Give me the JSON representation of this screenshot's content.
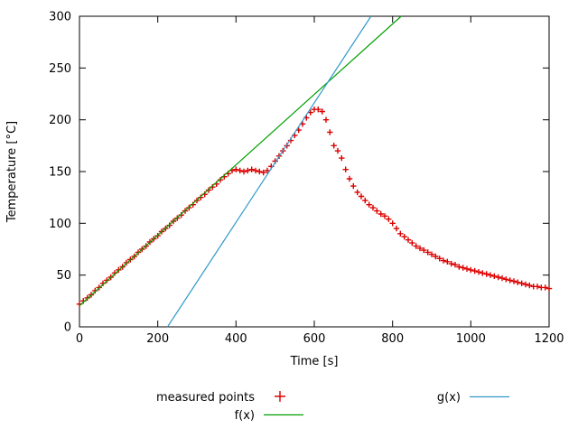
{
  "chart_data": {
    "type": "scatter",
    "title": "",
    "xlabel": "Time [s]",
    "ylabel": "Temperature [°C]",
    "xlim": [
      0,
      1200
    ],
    "ylim": [
      0,
      300
    ],
    "xticks": [
      0,
      200,
      400,
      600,
      800,
      1000,
      1200
    ],
    "yticks": [
      0,
      50,
      100,
      150,
      200,
      250,
      300
    ],
    "grid": false,
    "legend_position": "below-plot",
    "background": "#ffffff",
    "series": [
      {
        "name": "measured points",
        "type": "points",
        "marker": "+",
        "color": "#dd0000",
        "x": [
          0,
          10,
          20,
          30,
          40,
          50,
          60,
          70,
          80,
          90,
          100,
          110,
          120,
          130,
          140,
          150,
          160,
          170,
          180,
          190,
          200,
          210,
          220,
          230,
          240,
          250,
          260,
          270,
          280,
          290,
          300,
          310,
          320,
          330,
          340,
          350,
          360,
          370,
          380,
          390,
          400,
          410,
          420,
          430,
          440,
          450,
          460,
          470,
          480,
          490,
          500,
          510,
          520,
          530,
          540,
          550,
          560,
          570,
          580,
          590,
          600,
          610,
          620,
          630,
          640,
          650,
          660,
          670,
          680,
          690,
          700,
          710,
          720,
          730,
          740,
          750,
          760,
          770,
          780,
          790,
          800,
          810,
          820,
          830,
          840,
          850,
          860,
          870,
          880,
          890,
          900,
          910,
          920,
          930,
          940,
          950,
          960,
          970,
          980,
          990,
          1000,
          1010,
          1020,
          1030,
          1040,
          1050,
          1060,
          1070,
          1080,
          1090,
          1100,
          1110,
          1120,
          1130,
          1140,
          1150,
          1160,
          1170,
          1180,
          1190,
          1200
        ],
        "y": [
          22,
          25,
          28,
          31,
          35,
          38,
          42,
          45,
          48,
          52,
          55,
          58,
          62,
          65,
          68,
          72,
          75,
          78,
          82,
          85,
          88,
          92,
          95,
          98,
          102,
          105,
          108,
          112,
          115,
          118,
          122,
          125,
          128,
          132,
          135,
          138,
          142,
          145,
          148,
          151,
          152,
          151,
          150,
          151,
          152,
          151,
          150,
          149,
          151,
          155,
          160,
          165,
          170,
          175,
          180,
          185,
          190,
          196,
          202,
          207,
          210,
          210,
          208,
          200,
          188,
          175,
          170,
          163,
          152,
          143,
          136,
          130,
          126,
          122,
          118,
          115,
          112,
          109,
          107,
          104,
          100,
          95,
          90,
          87,
          84,
          81,
          78,
          76,
          74,
          72,
          70,
          68,
          66,
          64,
          63,
          61,
          60,
          58,
          57,
          56,
          55,
          54,
          53,
          52,
          51,
          50,
          49,
          48,
          47,
          46,
          45,
          44,
          43,
          42,
          41,
          40,
          39,
          39,
          38,
          38,
          37
        ]
      },
      {
        "name": "f(x)",
        "type": "line",
        "color": "#00a000",
        "x": [
          0,
          822
        ],
        "y": [
          20.5,
          300
        ]
      },
      {
        "name": "g(x)",
        "type": "line",
        "color": "#3399cc",
        "x": [
          225,
          745
        ],
        "y": [
          0,
          300
        ]
      }
    ]
  },
  "legend": {
    "measured_label": "measured points",
    "f_label": "f(x)",
    "g_label": "g(x)"
  }
}
